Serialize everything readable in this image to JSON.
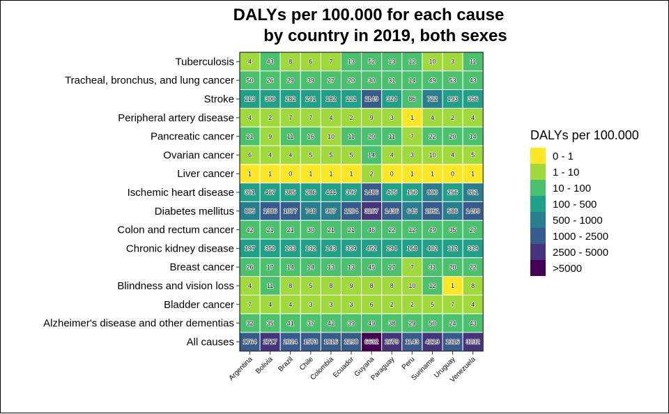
{
  "chart_data": {
    "type": "heatmap",
    "title_lines": [
      "DALYs per 100.000 for each cause",
      "by country in 2019, both sexes"
    ],
    "countries": [
      "Argentina",
      "Bolivia",
      "Brazil",
      "Chile",
      "Colombia",
      "Ecuador",
      "Guyana",
      "Paraguay",
      "Peru",
      "Suriname",
      "Uruguay",
      "Venezuela"
    ],
    "causes": [
      "Tuberculosis",
      "Tracheal, bronchus, and lung cancer",
      "Stroke",
      "Peripheral artery disease",
      "Pancreatic cancer",
      "Ovarian cancer",
      "Liver cancer",
      "Ischemic heart disease",
      "Diabetes mellitus",
      "Colon and rectum cancer",
      "Chronic kidney disease",
      "Breast cancer",
      "Blindness and vision loss",
      "Bladder cancer",
      "Alzheimer's disease and other dementias",
      "All causes"
    ],
    "values": [
      [
        4,
        43,
        8,
        6,
        7,
        13,
        52,
        13,
        12,
        10,
        3,
        11
      ],
      [
        50,
        26,
        29,
        39,
        27,
        20,
        30,
        31,
        14,
        49,
        53,
        43
      ],
      [
        213,
        300,
        282,
        241,
        182,
        221,
        1149,
        324,
        86,
        722,
        193,
        356
      ],
      [
        4,
        2,
        7,
        7,
        4,
        2,
        9,
        3,
        1,
        4,
        2,
        4
      ],
      [
        21,
        9,
        11,
        16,
        10,
        11,
        20,
        11,
        7,
        22,
        20,
        14
      ],
      [
        6,
        4,
        4,
        5,
        5,
        5,
        14,
        4,
        3,
        10,
        4,
        5
      ],
      [
        1,
        1,
        0,
        1,
        1,
        1,
        2,
        0,
        1,
        1,
        0,
        1
      ],
      [
        351,
        467,
        385,
        286,
        444,
        397,
        1486,
        475,
        150,
        800,
        256,
        851
      ],
      [
        805,
        1386,
        1077,
        748,
        907,
        1204,
        3267,
        1436,
        645,
        2051,
        586,
        1499
      ],
      [
        42,
        21,
        21,
        30,
        21,
        21,
        46,
        22,
        12,
        49,
        35,
        27
      ],
      [
        197,
        350,
        133,
        132,
        143,
        339,
        452,
        294,
        168,
        402,
        112,
        339
      ],
      [
        26,
        17,
        14,
        14,
        13,
        13,
        45,
        17,
        7,
        31,
        20,
        22
      ],
      [
        4,
        11,
        8,
        5,
        8,
        9,
        8,
        8,
        10,
        12,
        1,
        8
      ],
      [
        7,
        4,
        4,
        3,
        3,
        3,
        6,
        2,
        2,
        5,
        7,
        4
      ],
      [
        32,
        35,
        41,
        37,
        42,
        39,
        49,
        38,
        29,
        50,
        24,
        43
      ],
      [
        1764,
        2717,
        2024,
        1573,
        1816,
        2298,
        6632,
        2679,
        1143,
        4219,
        1316,
        3232
      ]
    ],
    "legend": {
      "title": "DALYs per 100.000",
      "position": "right",
      "bins": [
        {
          "label": "0 - 1",
          "color": "#FDE725"
        },
        {
          "label": "1 - 10",
          "color": "#9FDA3A"
        },
        {
          "label": "10 - 100",
          "color": "#4AC16D"
        },
        {
          "label": "100 - 500",
          "color": "#1FA187"
        },
        {
          "label": "500 - 1000",
          "color": "#277F8E"
        },
        {
          "label": "1000 - 2500",
          "color": "#365C8D"
        },
        {
          "label": "2500 - 5000",
          "color": "#46337E"
        },
        {
          "label": ">5000",
          "color": "#440154"
        }
      ]
    },
    "grid": false
  }
}
